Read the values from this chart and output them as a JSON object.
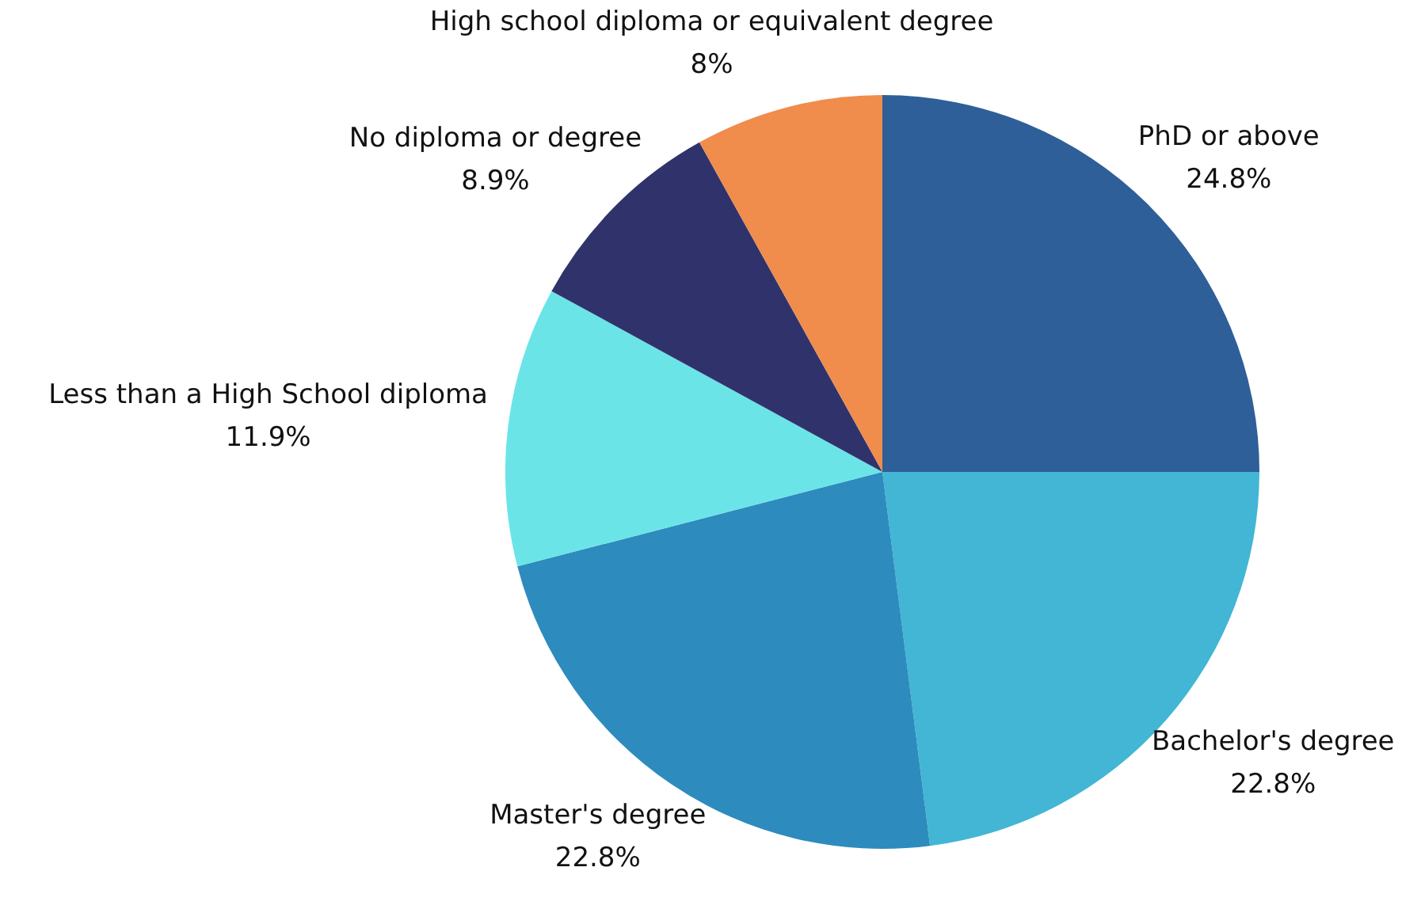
{
  "chart_data": {
    "type": "pie",
    "categories": [
      "PhD or above",
      "Bachelor's degree",
      "Master's degree",
      "Less than a High School diploma",
      "No diploma or degree",
      "High school diploma or equivalent degree"
    ],
    "values": [
      24.8,
      22.8,
      22.8,
      11.9,
      8.9,
      8
    ],
    "value_labels": [
      "24.8%",
      "22.8%",
      "22.8%",
      "11.9%",
      "8.9%",
      "8%"
    ],
    "colors": [
      "#2e5f98",
      "#42b6d4",
      "#2e8bbd",
      "#6be4e8",
      "#30336b",
      "#f08c4c"
    ],
    "legend": false
  }
}
